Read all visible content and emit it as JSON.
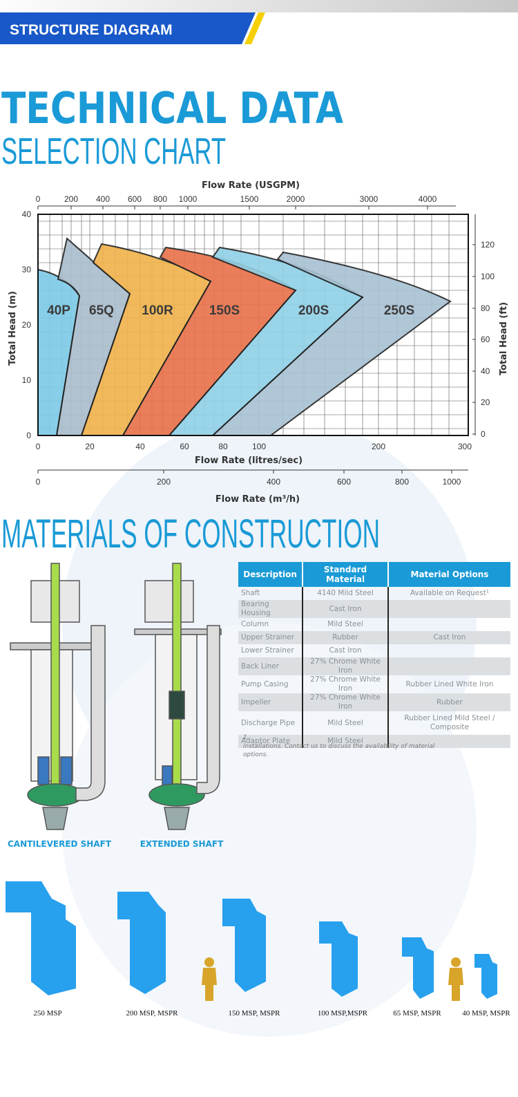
{
  "header": {
    "title": "STRUCTURE DIAGRAM"
  },
  "technical": {
    "title": "TECHNICAL DATA",
    "subtitle": "SELECTION CHART"
  },
  "selection_chart": {
    "top_axis": {
      "label": "Flow Rate (USGPM)",
      "ticks": [
        0,
        200,
        400,
        600,
        800,
        1000,
        1500,
        2000,
        3000,
        4000
      ]
    },
    "left_axis": {
      "label": "Total Head (m)",
      "ticks": [
        0,
        10,
        20,
        30,
        40
      ]
    },
    "right_axis": {
      "label": "Total Head (ft)",
      "ticks": [
        0,
        20,
        40,
        60,
        80,
        100,
        120
      ]
    },
    "bottom_axis": {
      "label": "Flow Rate (litres/sec)",
      "ticks": [
        0,
        20,
        40,
        60,
        80,
        100,
        200,
        300
      ]
    },
    "m3h_axis": {
      "label": "Flow Rate (m³/h)",
      "ticks": [
        0,
        200,
        400,
        600,
        800,
        1000
      ]
    },
    "regions": [
      "40P",
      "65Q",
      "100R",
      "150S",
      "200S",
      "250S"
    ]
  },
  "materials": {
    "title": "MATERIALS OF CONSTRUCTION",
    "table": {
      "header": {
        "description": "Description",
        "standard": "Standard Material",
        "options": "Material Options"
      },
      "rows": [
        {
          "description": "Shaft",
          "standard": "4140 Mild Steel",
          "options": "Available on Request¹"
        },
        {
          "description": "Bearing Housing",
          "standard": "Cast Iron"
        },
        {
          "description": "Column",
          "standard": "Mild Steel"
        },
        {
          "description": "Upper Strainer",
          "standard": "Rubber",
          "options": "Cast Iron"
        },
        {
          "description": "Lower Strainer",
          "standard": "Cast Iron"
        },
        {
          "description": "Back Liner",
          "standard": "27% Chrome White Iron"
        },
        {
          "description": "Pump Casing",
          "standard": "27% Chrome White Iron",
          "options": "Rubber Lined White Iron"
        },
        {
          "description": "Impeller",
          "standard": "27% Chrome White Iron",
          "options": "Rubber"
        },
        {
          "description": "Discharge Pipe",
          "standard": "Mild Steel",
          "options": "Rubber Lined Mild Steel / Composite"
        },
        {
          "description": "Adaptor Plate",
          "standard": "Mild Steel"
        }
      ]
    },
    "footnote": {
      "mark": "1.",
      "text": "installations. Contact us to discuss the availability of material options."
    }
  },
  "shaft_types": [
    "CANTILEVERED SHAFT",
    "EXTENDED SHAFT"
  ],
  "models": [
    "250 MSP",
    "200 MSP, MSPR",
    "150 MSP, MSPR",
    "100 MSP,MSPR",
    "65 MSP, MSPR",
    "40 MSP, MSPR"
  ]
}
